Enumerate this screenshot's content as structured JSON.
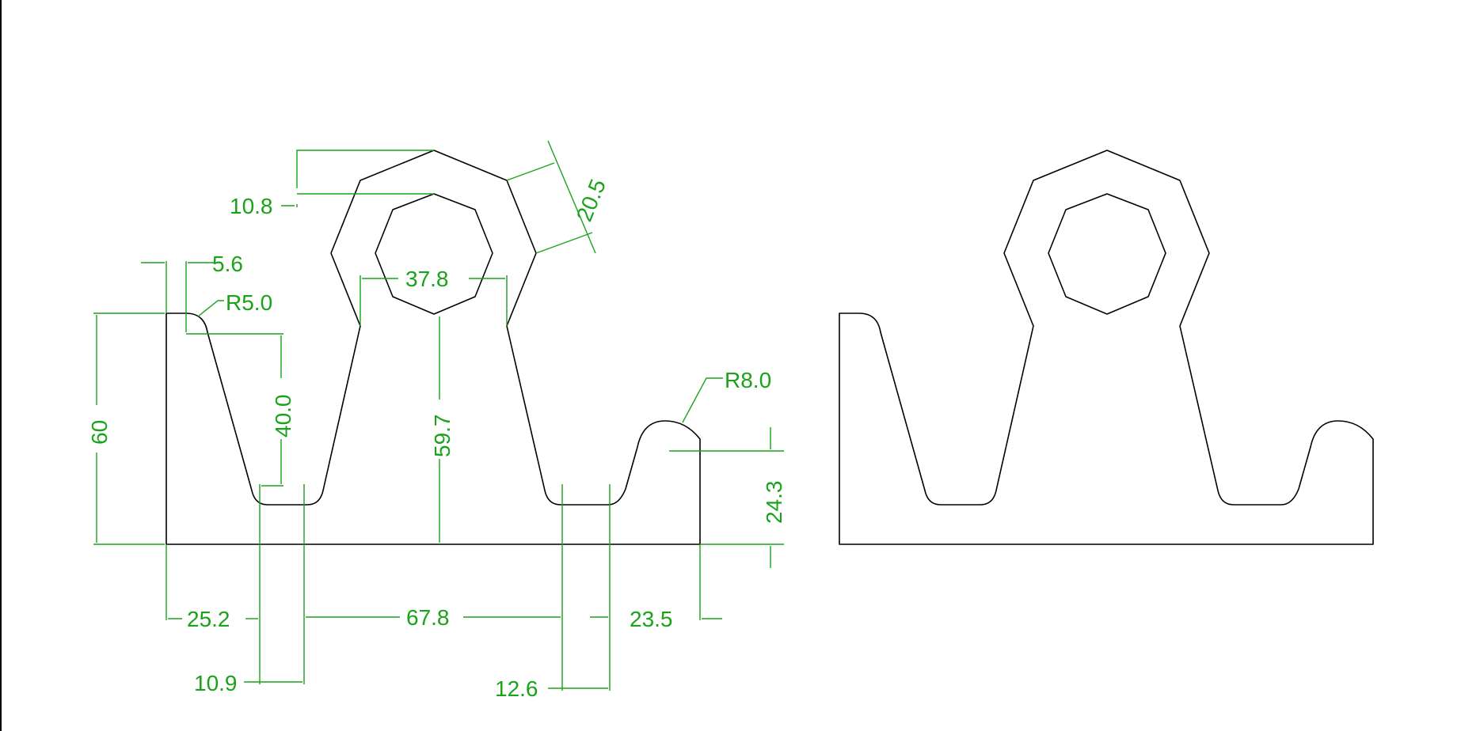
{
  "colors": {
    "part_outline": "#000000",
    "dimension": "#1aa31a",
    "background": "#ffffff"
  },
  "dimensions": {
    "d_10_8": "10.8",
    "d_20_5": "20.5",
    "d_5_6": "5.6",
    "r_5_0": "R5.0",
    "d_37_8": "37.8",
    "d_60": "60",
    "d_40_0": "40.0",
    "d_59_7": "59.7",
    "r_8_0": "R8.0",
    "d_24_3": "24.3",
    "d_25_2": "25.2",
    "d_67_8": "67.8",
    "d_23_5": "23.5",
    "d_10_9": "10.9",
    "d_12_6": "12.6"
  }
}
